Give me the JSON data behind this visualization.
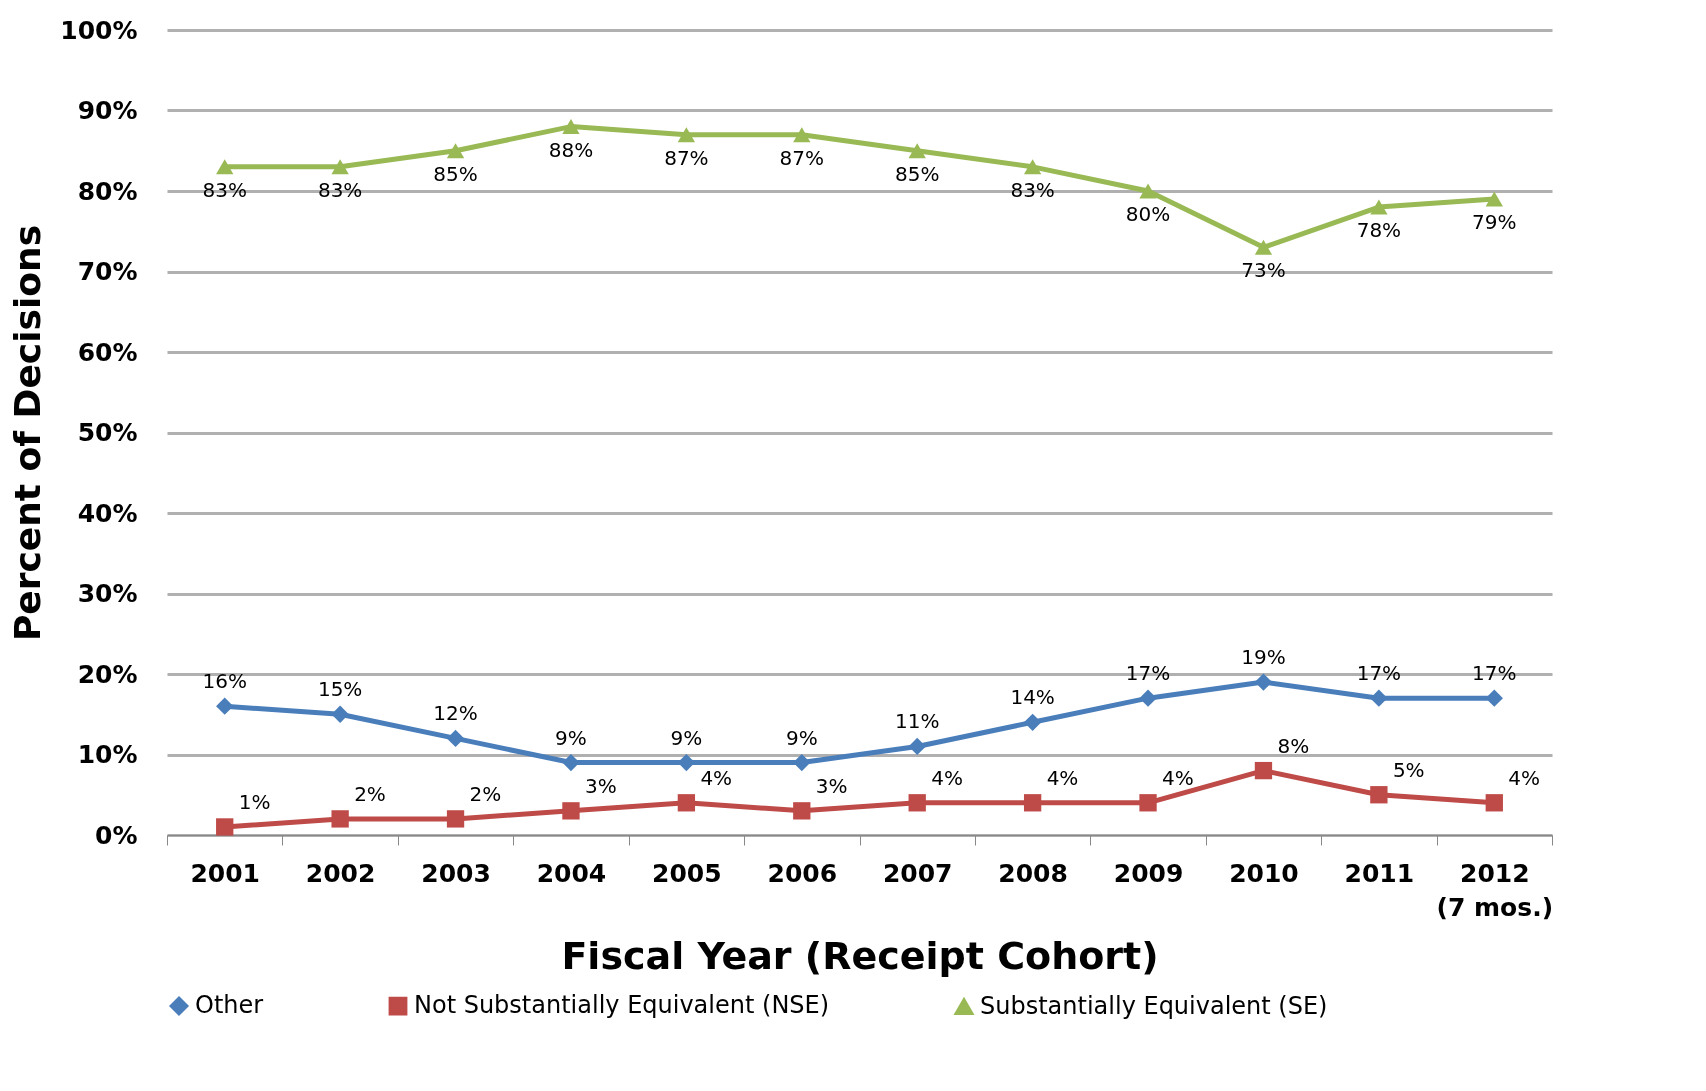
{
  "chart_data": {
    "type": "line",
    "xlabel": "Fiscal Year (Receipt Cohort)",
    "ylabel": "Percent of Decisions",
    "categories": [
      "2001",
      "2002",
      "2003",
      "2004",
      "2005",
      "2006",
      "2007",
      "2008",
      "2009",
      "2010",
      "2011",
      "2012\n(7 mos.)"
    ],
    "series": [
      {
        "name": "Other",
        "color": "#4a7ebb",
        "marker": "diamond",
        "values": [
          16,
          15,
          12,
          9,
          9,
          9,
          11,
          14,
          17,
          19,
          17,
          17
        ],
        "value_labels": [
          "16%",
          "15%",
          "12%",
          "9%",
          "9%",
          "9%",
          "11%",
          "14%",
          "17%",
          "19%",
          "17%",
          "17%"
        ]
      },
      {
        "name": "Not Substantially Equivalent (NSE)",
        "color": "#be4b48",
        "marker": "square",
        "values": [
          1,
          2,
          2,
          3,
          4,
          3,
          4,
          4,
          4,
          8,
          5,
          4
        ],
        "value_labels": [
          "1%",
          "2%",
          "2%",
          "3%",
          "4%",
          "3%",
          "4%",
          "4%",
          "4%",
          "8%",
          "5%",
          "4%"
        ]
      },
      {
        "name": "Substantially Equivalent (SE)",
        "color": "#98b954",
        "marker": "triangle",
        "values": [
          83,
          83,
          85,
          88,
          87,
          87,
          85,
          83,
          80,
          73,
          78,
          79
        ],
        "value_labels": [
          "83%",
          "83%",
          "85%",
          "88%",
          "87%",
          "87%",
          "85%",
          "83%",
          "80%",
          "73%",
          "78%",
          "79%"
        ]
      }
    ],
    "ylim": [
      0,
      100
    ],
    "yticks": [
      {
        "value": 0,
        "label": "0%"
      },
      {
        "value": 10,
        "label": "10%"
      },
      {
        "value": 20,
        "label": "20%"
      },
      {
        "value": 30,
        "label": "30%"
      },
      {
        "value": 40,
        "label": "40%"
      },
      {
        "value": 50,
        "label": "50%"
      },
      {
        "value": 60,
        "label": "60%"
      },
      {
        "value": 70,
        "label": "70%"
      },
      {
        "value": 80,
        "label": "80%"
      },
      {
        "value": 90,
        "label": "90%"
      },
      {
        "value": 100,
        "label": "100%"
      }
    ],
    "grid": "y",
    "legend": "bottom",
    "line_style": "solid"
  }
}
